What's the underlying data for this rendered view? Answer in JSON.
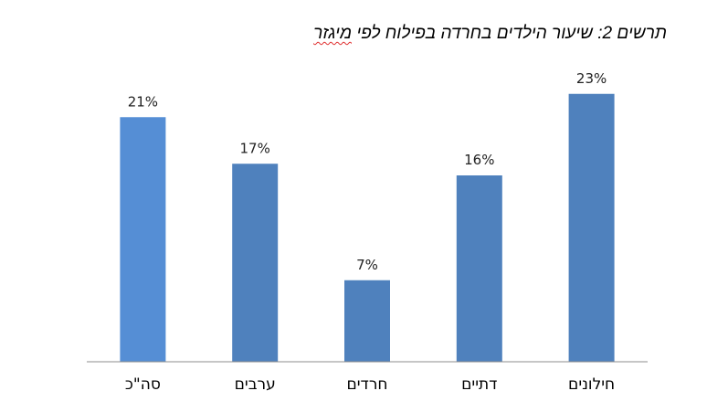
{
  "title": {
    "main": "תרשים 2: שיעור הילדים בחרדה  בפילוח לפי",
    "flagged_word": "מיגזר"
  },
  "chart_data": {
    "type": "bar",
    "categories": [
      "סה\"כ",
      "ערבים",
      "חרדים",
      "דתיים",
      "חילונים"
    ],
    "values": [
      21,
      17,
      7,
      16,
      23
    ],
    "value_labels": [
      "21%",
      "17%",
      "7%",
      "16%",
      "23%"
    ],
    "unit": "%",
    "ylim": [
      0,
      25
    ],
    "grid": false,
    "legend": "none",
    "colors": [
      "#558ED5",
      "#4F81BD",
      "#4F81BD",
      "#4F81BD",
      "#4F81BD"
    ],
    "axis_color": "#8C8C8C"
  }
}
